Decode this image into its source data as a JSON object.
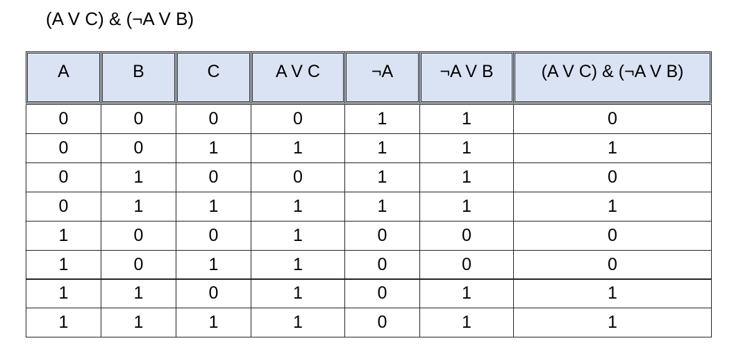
{
  "title": "(A V C) & (¬A V B)",
  "table": {
    "header": [
      "A",
      "B",
      "C",
      "A V C",
      "¬A",
      "¬A V B",
      "(A V C) & (¬A V B)"
    ],
    "rows": [
      [
        0,
        0,
        0,
        0,
        1,
        1,
        0
      ],
      [
        0,
        0,
        1,
        1,
        1,
        1,
        1
      ],
      [
        0,
        1,
        0,
        0,
        1,
        1,
        0
      ],
      [
        0,
        1,
        1,
        1,
        1,
        1,
        1
      ],
      [
        1,
        0,
        0,
        1,
        0,
        0,
        0
      ],
      [
        1,
        0,
        1,
        1,
        0,
        0,
        0
      ],
      [
        1,
        1,
        0,
        1,
        0,
        1,
        1
      ],
      [
        1,
        1,
        1,
        1,
        0,
        1,
        1
      ]
    ]
  }
}
